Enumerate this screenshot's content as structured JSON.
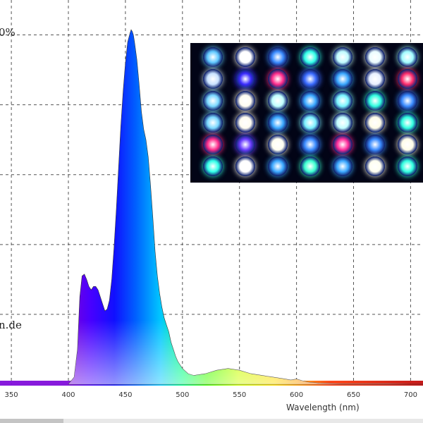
{
  "chart_data": {
    "type": "area",
    "title": "",
    "xlabel": "Wavelength (nm)",
    "ylabel": "",
    "xlim": [
      330,
      712
    ],
    "ylim": [
      0,
      110
    ],
    "grid": true,
    "x_ticks": [
      350,
      400,
      450,
      500,
      550,
      600,
      650,
      700
    ],
    "y_ticks": [
      0,
      20,
      40,
      60,
      80,
      100
    ],
    "top_tick_label": "0%",
    "watermark_fragment": "n.de",
    "series": [
      {
        "x": [
          400,
          405,
          408,
          410,
          412,
          414,
          416,
          418,
          420,
          422,
          424,
          426,
          428,
          430,
          432,
          434,
          436,
          438,
          440,
          442,
          444,
          446,
          448,
          450,
          452,
          454,
          455,
          456,
          457,
          458,
          460,
          462,
          464,
          466,
          468,
          470,
          472,
          474,
          476,
          478,
          480,
          482,
          484,
          486,
          488,
          490,
          492,
          494,
          496,
          498,
          500,
          505,
          510,
          520,
          530,
          540,
          550,
          560,
          570,
          580,
          590,
          595,
          600,
          605,
          610,
          620,
          630,
          640,
          650,
          660,
          680,
          700,
          712
        ],
        "y": [
          0,
          2,
          10,
          25,
          31,
          31.5,
          30,
          28,
          27,
          28,
          28,
          27,
          25,
          23,
          21,
          21.5,
          24,
          30,
          39,
          50,
          62,
          74,
          84,
          92,
          98,
          100.5,
          101.5,
          101,
          100,
          98,
          93,
          86,
          78,
          73,
          70,
          65,
          57,
          48,
          38,
          31,
          26,
          22,
          19,
          17,
          15,
          12,
          10,
          8,
          6.5,
          5.5,
          4.5,
          3,
          2.5,
          3,
          4,
          4.5,
          4,
          3,
          2.5,
          2,
          1.5,
          1.2,
          1.5,
          1,
          0.6,
          0.3,
          0.2,
          0.1,
          0.1,
          0.1,
          0.1,
          0,
          0
        ]
      }
    ]
  },
  "photo": {
    "leds": [
      [
        "#5fc8ff",
        "#ffffff",
        "#3a8bff",
        "#30ffe8",
        "#bffcff",
        "#eafcff",
        "#a0fbff"
      ],
      [
        "#c8e2ff",
        "#3a2bff",
        "#ff2a8a",
        "#3a6bff",
        "#3aa7ff",
        "#e8f0ff",
        "#ff2a6a"
      ],
      [
        "#7ad8ff",
        "#fffcf0",
        "#bfffff",
        "#3aa7ff",
        "#7af5ff",
        "#30ffe0",
        "#3a8bff"
      ],
      [
        "#7ad8ff",
        "#fffcf0",
        "#3aa7ff",
        "#7af0ff",
        "#bffcff",
        "#fffde8",
        "#30ffe0"
      ],
      [
        "#ff2a8a",
        "#6a3bff",
        "#fffff0",
        "#3a8bff",
        "#ff2a9a",
        "#3a8bff",
        "#fffde8"
      ],
      [
        "#30ffe8",
        "#ffffff",
        "#3aa7ff",
        "#3affd0",
        "#3aa7ff",
        "#fffff0",
        "#30ffe0"
      ]
    ]
  }
}
